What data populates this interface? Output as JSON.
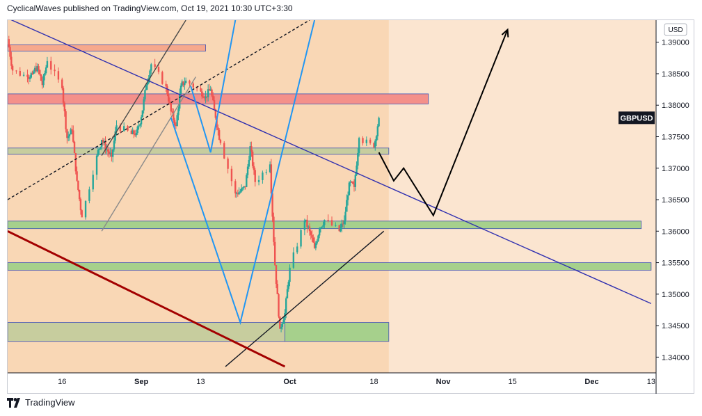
{
  "header": {
    "publish_line": "CyclicalWaves published on TradingView.com, Oct 19, 2021 10:30 UTC+3:30"
  },
  "footer": {
    "brand": "TradingView",
    "logo_icon": "tradingview-logo-icon"
  },
  "colors": {
    "bg_zone": "#f9d7b5",
    "bg_future": "#fbe5d0",
    "candle_up": "#26a69a",
    "candle_down": "#ef5350",
    "blue_line": "#2196f3",
    "trendline": "#3030b0",
    "dark_red_line": "#a30000",
    "label_bg": "#131722"
  },
  "chart_data": {
    "type": "candlestick",
    "symbol_label": "GBPUSD",
    "currency_label": "USD",
    "y_ticks": [
      "1.39000",
      "1.38500",
      "1.38000",
      "1.37500",
      "1.37000",
      "1.36500",
      "1.36000",
      "1.35500",
      "1.35000",
      "1.34500",
      "1.34000"
    ],
    "ylim": [
      1.3375,
      1.3935
    ],
    "x_ticks": [
      "16",
      "Sep",
      "13",
      "Oct",
      "18",
      "Nov",
      "15",
      "Dec",
      "13"
    ],
    "x_tick_dates": [
      "2021-08-16",
      "2021-09-01",
      "2021-09-13",
      "2021-10-01",
      "2021-10-18",
      "2021-11-01",
      "2021-11-15",
      "2021-12-01",
      "2021-12-13"
    ],
    "xlim": [
      "2021-08-05",
      "2021-12-14"
    ],
    "zones": [
      {
        "y_from": 1.3886,
        "y_to": 1.3896,
        "x_from": "2021-08-05",
        "x_to": "2021-09-14",
        "fill": "#f6a88c"
      },
      {
        "y_from": 1.3802,
        "y_to": 1.3818,
        "x_from": "2021-08-05",
        "x_to": "2021-10-29",
        "fill": "#f4908a"
      },
      {
        "y_from": 1.3722,
        "y_to": 1.3732,
        "x_from": "2021-08-05",
        "x_to": "2021-10-21",
        "fill": "#c7cd9e"
      },
      {
        "y_from": 1.3604,
        "y_to": 1.3616,
        "x_from": "2021-08-05",
        "x_to": "2021-12-11",
        "fill": "#a6d08c"
      },
      {
        "y_from": 1.3538,
        "y_to": 1.355,
        "x_from": "2021-08-05",
        "x_to": "2021-12-13",
        "fill": "#a6d08c"
      },
      {
        "y_from": 1.3425,
        "y_to": 1.3455,
        "x_from": "2021-08-05",
        "x_to": "2021-09-30",
        "fill": "#c7cd9e"
      },
      {
        "y_from": 1.3425,
        "y_to": 1.3455,
        "x_from": "2021-09-30",
        "x_to": "2021-10-21",
        "fill": "#a6d08c"
      }
    ],
    "candles_closes": [
      {
        "date": "2021-08-05",
        "close": 1.3905
      },
      {
        "date": "2021-08-06",
        "close": 1.3855
      },
      {
        "date": "2021-08-09",
        "close": 1.3845
      },
      {
        "date": "2021-08-10",
        "close": 1.385
      },
      {
        "date": "2021-08-11",
        "close": 1.3862
      },
      {
        "date": "2021-08-12",
        "close": 1.3832
      },
      {
        "date": "2021-08-13",
        "close": 1.387
      },
      {
        "date": "2021-08-16",
        "close": 1.3827
      },
      {
        "date": "2021-08-17",
        "close": 1.3748
      },
      {
        "date": "2021-08-18",
        "close": 1.376
      },
      {
        "date": "2021-08-19",
        "close": 1.368
      },
      {
        "date": "2021-08-20",
        "close": 1.3622
      },
      {
        "date": "2021-08-23",
        "close": 1.372
      },
      {
        "date": "2021-08-24",
        "close": 1.3745
      },
      {
        "date": "2021-08-25",
        "close": 1.373
      },
      {
        "date": "2021-08-26",
        "close": 1.3718
      },
      {
        "date": "2021-08-27",
        "close": 1.3768
      },
      {
        "date": "2021-08-30",
        "close": 1.3754
      },
      {
        "date": "2021-08-31",
        "close": 1.3756
      },
      {
        "date": "2021-09-01",
        "close": 1.3781
      },
      {
        "date": "2021-09-02",
        "close": 1.3832
      },
      {
        "date": "2021-09-03",
        "close": 1.3865
      },
      {
        "date": "2021-09-06",
        "close": 1.383
      },
      {
        "date": "2021-09-07",
        "close": 1.379
      },
      {
        "date": "2021-09-08",
        "close": 1.3767
      },
      {
        "date": "2021-09-09",
        "close": 1.3831
      },
      {
        "date": "2021-09-10",
        "close": 1.3839
      },
      {
        "date": "2021-09-13",
        "close": 1.3822
      },
      {
        "date": "2021-09-14",
        "close": 1.3814
      },
      {
        "date": "2021-09-15",
        "close": 1.3825
      },
      {
        "date": "2021-09-16",
        "close": 1.378
      },
      {
        "date": "2021-09-17",
        "close": 1.374
      },
      {
        "date": "2021-09-20",
        "close": 1.366
      },
      {
        "date": "2021-09-21",
        "close": 1.3663
      },
      {
        "date": "2021-09-22",
        "close": 1.367
      },
      {
        "date": "2021-09-23",
        "close": 1.3735
      },
      {
        "date": "2021-09-24",
        "close": 1.3678
      },
      {
        "date": "2021-09-27",
        "close": 1.3706
      },
      {
        "date": "2021-09-28",
        "close": 1.3546
      },
      {
        "date": "2021-09-29",
        "close": 1.3445
      },
      {
        "date": "2021-09-30",
        "close": 1.347
      },
      {
        "date": "2021-10-01",
        "close": 1.3542
      },
      {
        "date": "2021-10-04",
        "close": 1.3617
      },
      {
        "date": "2021-10-05",
        "close": 1.36
      },
      {
        "date": "2021-10-06",
        "close": 1.3573
      },
      {
        "date": "2021-10-07",
        "close": 1.3604
      },
      {
        "date": "2021-10-08",
        "close": 1.3618
      },
      {
        "date": "2021-10-11",
        "close": 1.36
      },
      {
        "date": "2021-10-12",
        "close": 1.3617
      },
      {
        "date": "2021-10-13",
        "close": 1.3677
      },
      {
        "date": "2021-10-14",
        "close": 1.367
      },
      {
        "date": "2021-10-15",
        "close": 1.3748
      },
      {
        "date": "2021-10-18",
        "close": 1.3733
      },
      {
        "date": "2021-10-19",
        "close": 1.378
      }
    ],
    "overlay_lines": [
      {
        "name": "descending-trendline",
        "color": "#3030b0",
        "points": [
          [
            "2021-08-05",
            1.3938
          ],
          [
            "2021-12-13",
            1.3485
          ]
        ]
      },
      {
        "name": "ascending-support-line",
        "color": "#131722",
        "points": [
          [
            "2021-09-18",
            1.3385
          ],
          [
            "2021-10-20",
            1.36
          ]
        ]
      },
      {
        "name": "dark-red-line",
        "color": "#a30000",
        "points": [
          [
            "2021-08-05",
            1.36
          ],
          [
            "2021-09-30",
            1.3385
          ]
        ]
      },
      {
        "name": "dashed-line",
        "color": "#131722",
        "points": [
          [
            "2021-08-05",
            1.365
          ],
          [
            "2021-10-05",
            1.3935
          ]
        ]
      },
      {
        "name": "channel-upper",
        "color": "#4a4a4a",
        "points": [
          [
            "2021-08-24",
            1.372
          ],
          [
            "2021-09-10",
            1.3935
          ]
        ]
      },
      {
        "name": "channel-lower",
        "color": "#8a8a8a",
        "points": [
          [
            "2021-08-24",
            1.36
          ],
          [
            "2021-09-12",
            1.3845
          ]
        ]
      },
      {
        "name": "blue-zigzag",
        "color": "#2196f3",
        "points": [
          [
            "2021-09-07",
            1.378
          ],
          [
            "2021-09-21",
            1.3455
          ],
          [
            "2021-10-06",
            1.3935
          ]
        ]
      },
      {
        "name": "blue-w",
        "color": "#2196f3",
        "points": [
          [
            "2021-09-11",
            1.383
          ],
          [
            "2021-09-15",
            1.3725
          ],
          [
            "2021-09-20",
            1.3935
          ]
        ]
      },
      {
        "name": "projection-path",
        "color": "#000000",
        "points": [
          [
            "2021-10-19",
            1.3725
          ],
          [
            "2021-10-22",
            1.368
          ],
          [
            "2021-10-24",
            1.37
          ],
          [
            "2021-10-30",
            1.3625
          ],
          [
            "2021-11-14",
            1.392
          ]
        ]
      }
    ]
  }
}
